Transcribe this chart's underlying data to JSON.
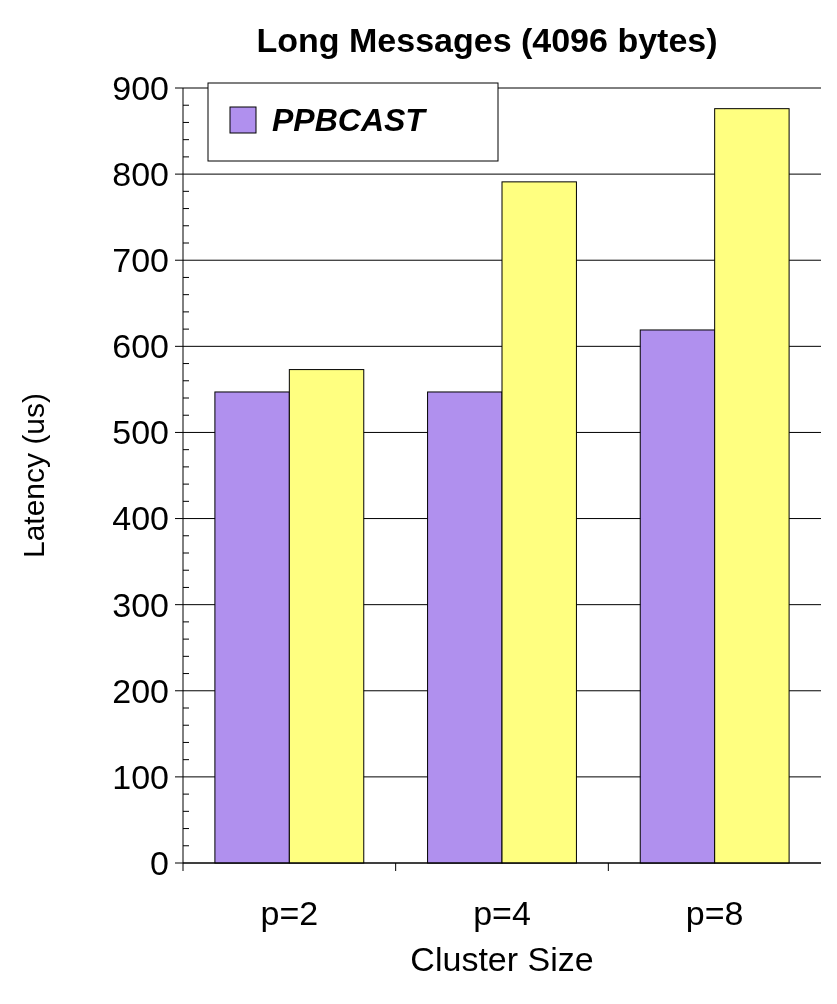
{
  "chart_data": {
    "type": "bar",
    "title": "Long Messages (4096 bytes)",
    "xlabel": "Cluster Size",
    "ylabel": "Latency (us)",
    "categories": [
      "p=2",
      "p=4",
      "p=8"
    ],
    "series": [
      {
        "name": "PPBCAST",
        "color": "#b090ee",
        "values": [
          547,
          547,
          619
        ]
      },
      {
        "color": "#ffff80",
        "values": [
          573,
          791,
          876
        ]
      }
    ],
    "ylim": [
      0,
      900
    ],
    "yticks": [
      0,
      100,
      200,
      300,
      400,
      500,
      600,
      700,
      800,
      900
    ],
    "grid": "y",
    "legend": "top left"
  }
}
